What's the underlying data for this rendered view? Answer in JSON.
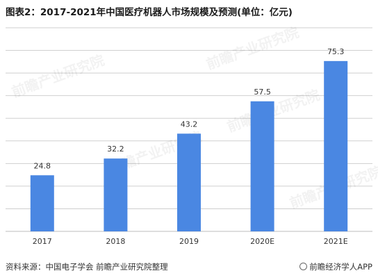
{
  "title": "图表2：2017-2021年中国医疗机器人市场规模及预测(单位：亿元)",
  "watermark": "前瞻产业研究院",
  "footer": {
    "source": "资料来源：中国电子学会  前瞻产业研究院整理",
    "brand": "前瞻经济学人APP",
    "brand_icon": "qianzhan-logo-icon"
  },
  "colors": {
    "bar": "#4a87e2",
    "grid": "#cfcfcf"
  },
  "chart_data": {
    "type": "bar",
    "categories": [
      "2017",
      "2018",
      "2019",
      "2020E",
      "2021E"
    ],
    "values": [
      24.8,
      32.2,
      43.2,
      57.5,
      75.3
    ],
    "value_labels": [
      "24.8",
      "32.2",
      "43.2",
      "57.5",
      "75.3"
    ],
    "title": "图表2：2017-2021年中国医疗机器人市场规模及预测(单位：亿元)",
    "xlabel": "",
    "ylabel": "",
    "ylim": [
      0,
      90
    ],
    "grid": true,
    "legend": "none"
  }
}
